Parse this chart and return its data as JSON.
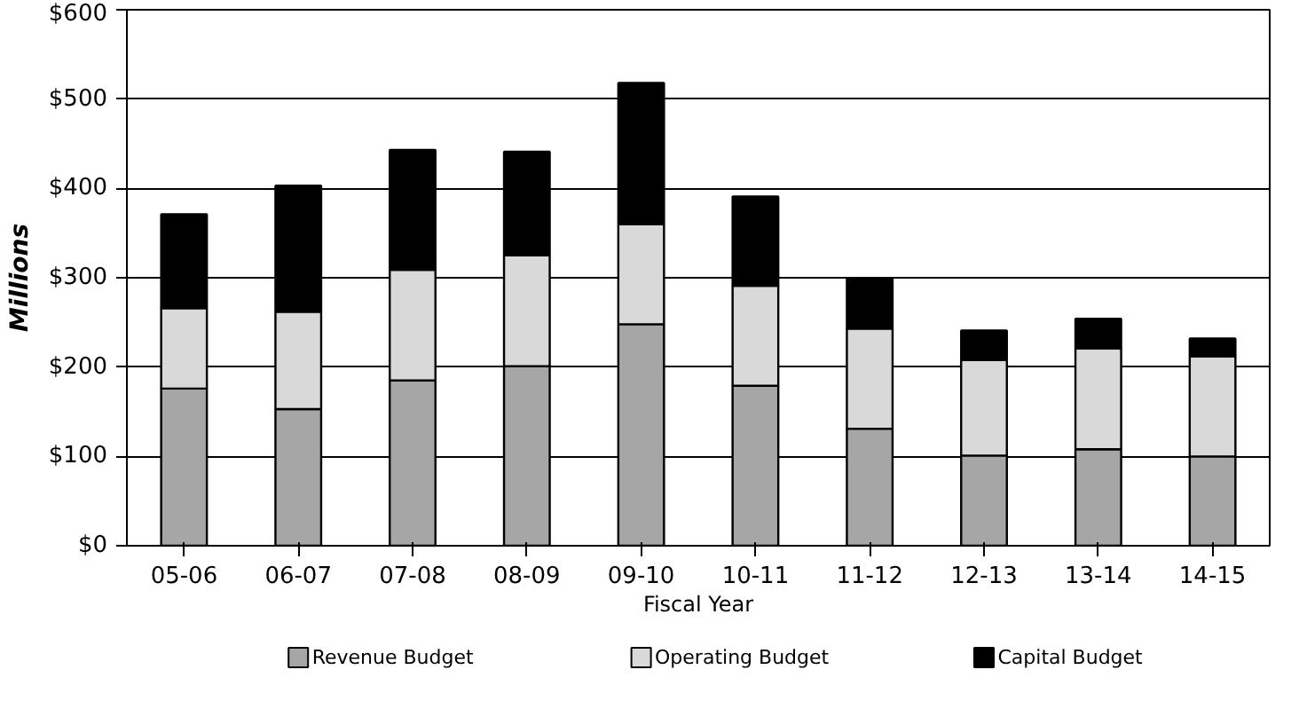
{
  "chart_data": {
    "type": "bar",
    "stacked": true,
    "xlabel": "Fiscal Year",
    "ylabel": "Millions",
    "categories": [
      "05-06",
      "06-07",
      "07-08",
      "08-09",
      "09-10",
      "10-11",
      "11-12",
      "12-13",
      "13-14",
      "14-15"
    ],
    "series": [
      {
        "name": "Revenue Budget",
        "color": "#a6a6a6",
        "values": [
          176,
          153,
          185,
          201,
          248,
          179,
          131,
          101,
          108,
          100
        ]
      },
      {
        "name": "Operating Budget",
        "color": "#d9d9d9",
        "values": [
          90,
          109,
          124,
          124,
          112,
          112,
          112,
          107,
          113,
          112
        ]
      },
      {
        "name": "Capital Budget",
        "color": "#000000",
        "values": [
          105,
          141,
          134,
          116,
          158,
          100,
          56,
          33,
          33,
          20
        ]
      }
    ],
    "ylim": [
      0,
      600
    ],
    "yticks": [
      {
        "value": 0,
        "label": "$0"
      },
      {
        "value": 100,
        "label": "$100"
      },
      {
        "value": 200,
        "label": "$200"
      },
      {
        "value": 300,
        "label": "$300"
      },
      {
        "value": 400,
        "label": "$400"
      },
      {
        "value": 500,
        "label": "$500"
      },
      {
        "value": 600,
        "label": "$600"
      }
    ],
    "grid": "y",
    "legend": "bottom"
  }
}
